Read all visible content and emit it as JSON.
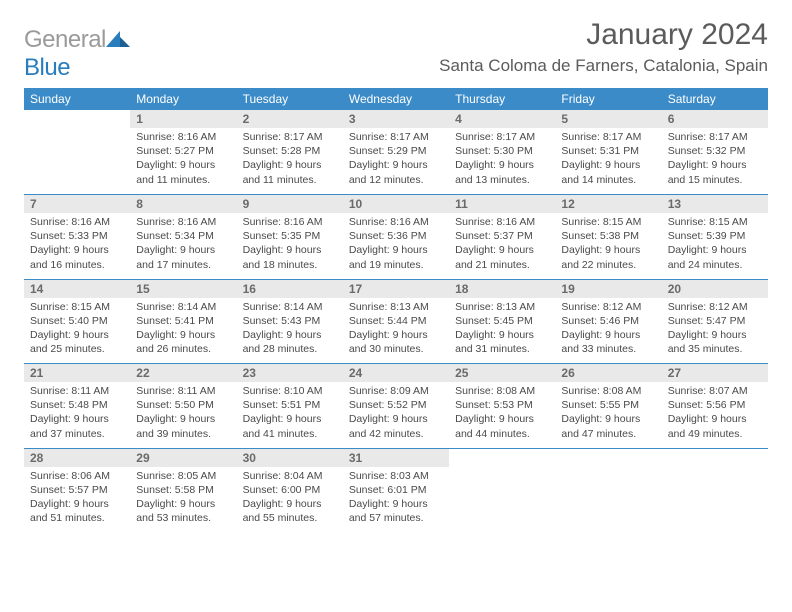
{
  "brand": {
    "part1": "General",
    "part2": "Blue"
  },
  "title": "January 2024",
  "location": "Santa Coloma de Farners, Catalonia, Spain",
  "colors": {
    "header_bg": "#3b8bc8",
    "header_text": "#ffffff",
    "daynum_bg": "#e9e9e9",
    "daynum_text": "#6a6a6a",
    "body_text": "#4a4a4a",
    "rule": "#3b8bc8",
    "brand_gray": "#9a9a9a",
    "brand_blue": "#2a7dbc"
  },
  "weekdays": [
    "Sunday",
    "Monday",
    "Tuesday",
    "Wednesday",
    "Thursday",
    "Friday",
    "Saturday"
  ],
  "weeks": [
    [
      null,
      {
        "n": "1",
        "sr": "8:16 AM",
        "ss": "5:27 PM",
        "dl": "9 hours and 11 minutes."
      },
      {
        "n": "2",
        "sr": "8:17 AM",
        "ss": "5:28 PM",
        "dl": "9 hours and 11 minutes."
      },
      {
        "n": "3",
        "sr": "8:17 AM",
        "ss": "5:29 PM",
        "dl": "9 hours and 12 minutes."
      },
      {
        "n": "4",
        "sr": "8:17 AM",
        "ss": "5:30 PM",
        "dl": "9 hours and 13 minutes."
      },
      {
        "n": "5",
        "sr": "8:17 AM",
        "ss": "5:31 PM",
        "dl": "9 hours and 14 minutes."
      },
      {
        "n": "6",
        "sr": "8:17 AM",
        "ss": "5:32 PM",
        "dl": "9 hours and 15 minutes."
      }
    ],
    [
      {
        "n": "7",
        "sr": "8:16 AM",
        "ss": "5:33 PM",
        "dl": "9 hours and 16 minutes."
      },
      {
        "n": "8",
        "sr": "8:16 AM",
        "ss": "5:34 PM",
        "dl": "9 hours and 17 minutes."
      },
      {
        "n": "9",
        "sr": "8:16 AM",
        "ss": "5:35 PM",
        "dl": "9 hours and 18 minutes."
      },
      {
        "n": "10",
        "sr": "8:16 AM",
        "ss": "5:36 PM",
        "dl": "9 hours and 19 minutes."
      },
      {
        "n": "11",
        "sr": "8:16 AM",
        "ss": "5:37 PM",
        "dl": "9 hours and 21 minutes."
      },
      {
        "n": "12",
        "sr": "8:15 AM",
        "ss": "5:38 PM",
        "dl": "9 hours and 22 minutes."
      },
      {
        "n": "13",
        "sr": "8:15 AM",
        "ss": "5:39 PM",
        "dl": "9 hours and 24 minutes."
      }
    ],
    [
      {
        "n": "14",
        "sr": "8:15 AM",
        "ss": "5:40 PM",
        "dl": "9 hours and 25 minutes."
      },
      {
        "n": "15",
        "sr": "8:14 AM",
        "ss": "5:41 PM",
        "dl": "9 hours and 26 minutes."
      },
      {
        "n": "16",
        "sr": "8:14 AM",
        "ss": "5:43 PM",
        "dl": "9 hours and 28 minutes."
      },
      {
        "n": "17",
        "sr": "8:13 AM",
        "ss": "5:44 PM",
        "dl": "9 hours and 30 minutes."
      },
      {
        "n": "18",
        "sr": "8:13 AM",
        "ss": "5:45 PM",
        "dl": "9 hours and 31 minutes."
      },
      {
        "n": "19",
        "sr": "8:12 AM",
        "ss": "5:46 PM",
        "dl": "9 hours and 33 minutes."
      },
      {
        "n": "20",
        "sr": "8:12 AM",
        "ss": "5:47 PM",
        "dl": "9 hours and 35 minutes."
      }
    ],
    [
      {
        "n": "21",
        "sr": "8:11 AM",
        "ss": "5:48 PM",
        "dl": "9 hours and 37 minutes."
      },
      {
        "n": "22",
        "sr": "8:11 AM",
        "ss": "5:50 PM",
        "dl": "9 hours and 39 minutes."
      },
      {
        "n": "23",
        "sr": "8:10 AM",
        "ss": "5:51 PM",
        "dl": "9 hours and 41 minutes."
      },
      {
        "n": "24",
        "sr": "8:09 AM",
        "ss": "5:52 PM",
        "dl": "9 hours and 42 minutes."
      },
      {
        "n": "25",
        "sr": "8:08 AM",
        "ss": "5:53 PM",
        "dl": "9 hours and 44 minutes."
      },
      {
        "n": "26",
        "sr": "8:08 AM",
        "ss": "5:55 PM",
        "dl": "9 hours and 47 minutes."
      },
      {
        "n": "27",
        "sr": "8:07 AM",
        "ss": "5:56 PM",
        "dl": "9 hours and 49 minutes."
      }
    ],
    [
      {
        "n": "28",
        "sr": "8:06 AM",
        "ss": "5:57 PM",
        "dl": "9 hours and 51 minutes."
      },
      {
        "n": "29",
        "sr": "8:05 AM",
        "ss": "5:58 PM",
        "dl": "9 hours and 53 minutes."
      },
      {
        "n": "30",
        "sr": "8:04 AM",
        "ss": "6:00 PM",
        "dl": "9 hours and 55 minutes."
      },
      {
        "n": "31",
        "sr": "8:03 AM",
        "ss": "6:01 PM",
        "dl": "9 hours and 57 minutes."
      },
      null,
      null,
      null
    ]
  ],
  "labels": {
    "sunrise": "Sunrise: ",
    "sunset": "Sunset: ",
    "daylight": "Daylight: "
  }
}
